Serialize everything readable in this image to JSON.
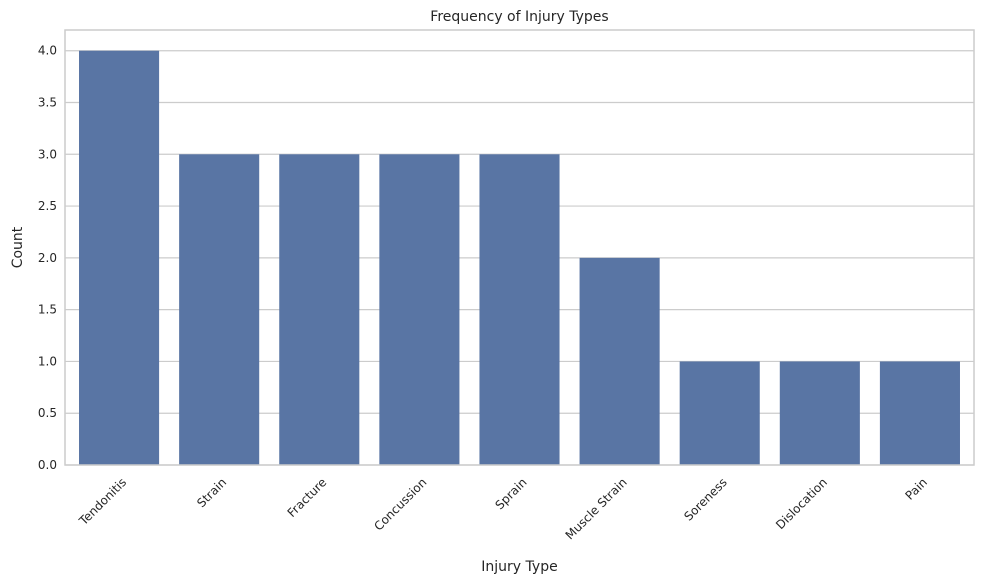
{
  "chart_data": {
    "type": "bar",
    "title": "Frequency of Injury Types",
    "xlabel": "Injury Type",
    "ylabel": "Count",
    "categories": [
      "Tendonitis",
      "Strain",
      "Fracture",
      "Concussion",
      "Sprain",
      "Muscle Strain",
      "Soreness",
      "Dislocation",
      "Pain"
    ],
    "values": [
      4,
      3,
      3,
      3,
      3,
      2,
      1,
      1,
      1
    ],
    "ylim": [
      0,
      4.2
    ],
    "yticks": [
      "0.0",
      "0.5",
      "1.0",
      "1.5",
      "2.0",
      "2.5",
      "3.0",
      "3.5",
      "4.0"
    ],
    "grid": true,
    "bar_color": "#5975a4",
    "grid_color": "#cccccc"
  }
}
